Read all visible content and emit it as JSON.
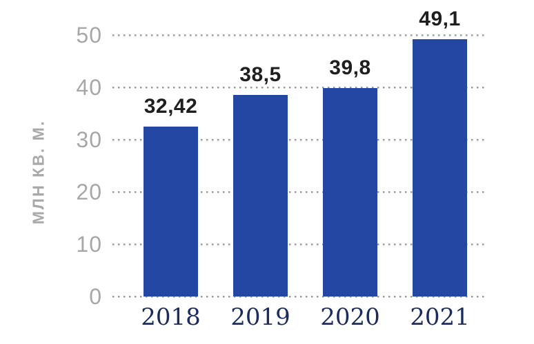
{
  "chart_data": {
    "type": "bar",
    "title": "",
    "categories": [
      "2018",
      "2019",
      "2020",
      "2021"
    ],
    "values": [
      32.42,
      38.5,
      39.8,
      49.1
    ],
    "value_labels": [
      "32,42",
      "38,5",
      "39,8",
      "49,1"
    ],
    "ylabel": "млн кв. м.",
    "ytick_labels": [
      "0",
      "10",
      "20",
      "30",
      "40",
      "50"
    ],
    "ytick_values": [
      0,
      10,
      20,
      30,
      40,
      50
    ],
    "ylim": [
      0,
      50
    ],
    "grid": "horizontal-dotted",
    "legend": "none",
    "colors": {
      "bar": "#2547a4",
      "grid_dot": "#9b9b9b",
      "tick_label": "#a7a7a7",
      "axis_title": "#a9a9a9",
      "value_label": "#1f1f1f",
      "category_label": "#1b2b5e",
      "background": "#ffffff"
    }
  }
}
